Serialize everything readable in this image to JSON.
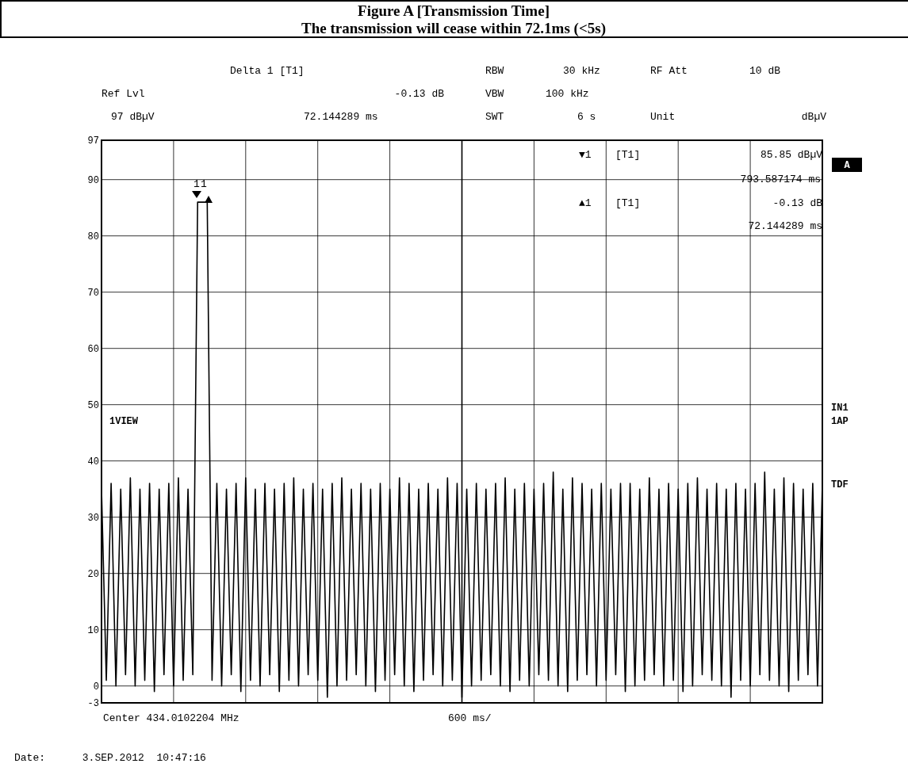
{
  "chart_data": {
    "type": "line",
    "title": "Figure A [Transmission Time]",
    "subtitle": "The transmission will cease within 72.1ms (<5s)",
    "categories": [
      null,
      null,
      null,
      null,
      null,
      null,
      null,
      null,
      null,
      null,
      null,
      null,
      null,
      null,
      null,
      null,
      null,
      null,
      null,
      null,
      null,
      null,
      null,
      null,
      null,
      null,
      null,
      null,
      null,
      null,
      null,
      null,
      null,
      null,
      null,
      null,
      null,
      null,
      null,
      null,
      null,
      null,
      null,
      null,
      null,
      null,
      null,
      null,
      null,
      null,
      null,
      null,
      null,
      null,
      null,
      null,
      null,
      null,
      null,
      null,
      null,
      null,
      null,
      null,
      null,
      null,
      null,
      null,
      null,
      null,
      null,
      null,
      null,
      null,
      null,
      null,
      null,
      null,
      null,
      null,
      null,
      null,
      null,
      null,
      null,
      null,
      null,
      null,
      null,
      null,
      null,
      null,
      null,
      null,
      null,
      null,
      null,
      null,
      null,
      null,
      null,
      null,
      null,
      null,
      null,
      null,
      null,
      null,
      null,
      null,
      null,
      null,
      null,
      null,
      null,
      null,
      null,
      null,
      null,
      null,
      null,
      null,
      null,
      null,
      null,
      null,
      null,
      null,
      null,
      null,
      null,
      null,
      null,
      null,
      null,
      null,
      null,
      null,
      null,
      null,
      null,
      null,
      null,
      null,
      null,
      null,
      null,
      null,
      null,
      null,
      null
    ],
    "ylim": [
      -3,
      97
    ],
    "yticks": [
      -3,
      0,
      10,
      20,
      30,
      40,
      50,
      60,
      70,
      80,
      90,
      97
    ],
    "tick_labels": "y",
    "grid": true,
    "marker": "none",
    "line_style": "solid",
    "series": [
      {
        "color": "#000000",
        "values": [
          35,
          1,
          36,
          0,
          35,
          2,
          37,
          0,
          35,
          1,
          36,
          -1,
          35,
          2,
          36,
          0,
          37,
          1,
          35,
          2,
          86,
          86,
          86,
          1,
          36,
          0,
          35,
          2,
          36,
          -1,
          37,
          1,
          35,
          0,
          36,
          2,
          35,
          -1,
          36,
          1,
          37,
          0,
          35,
          2,
          36,
          1,
          35,
          -2,
          36,
          0,
          37,
          1,
          35,
          2,
          36,
          0,
          35,
          -1,
          36,
          1,
          35,
          2,
          37,
          0,
          36,
          -1,
          35,
          1,
          36,
          2,
          35,
          0,
          37,
          1,
          36,
          -2,
          35,
          0,
          36,
          1,
          35,
          2,
          36,
          0,
          37,
          -1,
          35,
          1,
          36,
          0,
          35,
          2,
          36,
          1,
          38,
          0,
          35,
          -1,
          37,
          1,
          36,
          2,
          35,
          0,
          36,
          1,
          35,
          2,
          36,
          -1,
          36,
          0,
          35,
          1,
          37,
          2,
          35,
          0,
          36,
          1,
          35,
          -1,
          36,
          0,
          37,
          2,
          35,
          1,
          36,
          0,
          35,
          -2,
          36,
          1,
          35,
          0,
          36,
          2,
          38,
          1,
          35,
          0,
          37,
          -1,
          36,
          1,
          35,
          2,
          36,
          0,
          36
        ]
      }
    ],
    "annotations": [
      "Delta 1 [T1]",
      "RBW",
      "30 kHz",
      "RF Att",
      "10 dB",
      "Ref Lvl",
      "-0.13 dB",
      "VBW",
      "100 kHz",
      "97 dBµV",
      "72.144289 ms",
      "SWT",
      "6 s",
      "Unit",
      "dBµV",
      "▼1",
      "[T1]",
      "85.85 dBµV",
      "793.587174 ms",
      "▲1",
      "[T1]",
      "-0.13 dB",
      "72.144289 ms",
      "A",
      "IN1",
      "1AP",
      "TDF",
      "1VIEW",
      "Center 434.0102204 MHz",
      "600 ms/",
      "Date:      3.SEP.2012  10:47:16",
      "1",
      "1"
    ]
  }
}
